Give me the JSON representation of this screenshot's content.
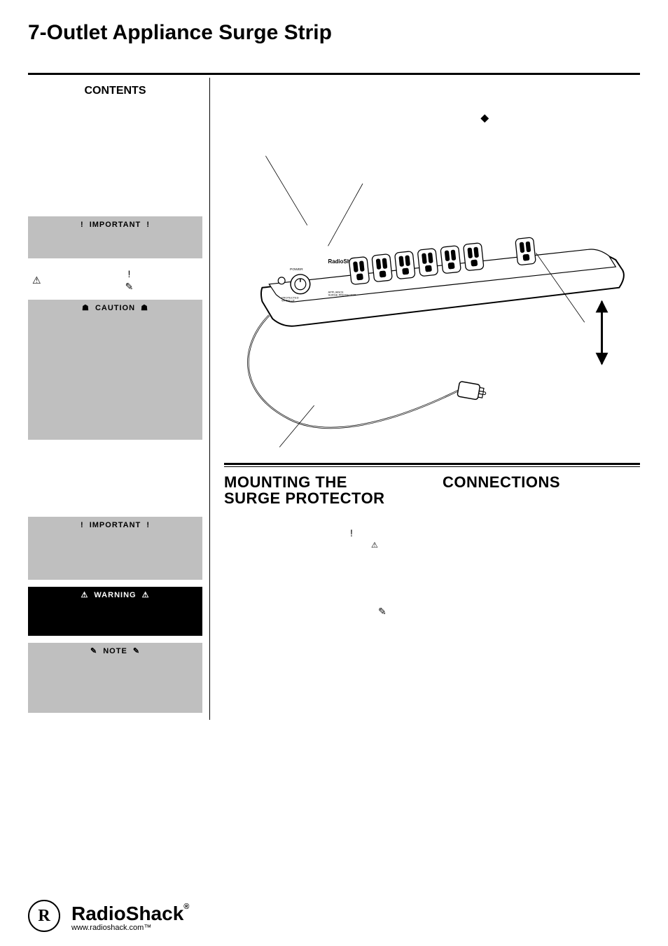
{
  "title": "7-Outlet Appliance Surge Strip",
  "sidebar": {
    "contents_heading": "CONTENTS",
    "callouts": [
      {
        "label": "IMPORTANT",
        "bang": "!",
        "style": "gray"
      },
      {
        "label": "CAUTION",
        "bang": "☗",
        "style": "gray"
      },
      {
        "label": "IMPORTANT",
        "bang": "!",
        "style": "gray"
      },
      {
        "label": "WARNING",
        "bang": "⚠",
        "style": "black"
      },
      {
        "label": "NOTE",
        "bang": "✎",
        "style": "gray"
      }
    ],
    "icon_box": {
      "left": "⚠",
      "mid": "!",
      "right": "✎"
    }
  },
  "main": {
    "illustration": {
      "brand_on_strip": "RadioShack",
      "labels": {
        "power": "POWER",
        "protected": "PROTECTED\\nWHEN LIT",
        "appliance": "APPLIANCE\\nSURGE PROTECTOR"
      }
    },
    "sections": {
      "left_heading": "MOUNTING THE\nSURGE PROTECTOR",
      "right_heading": "CONNECTIONS"
    },
    "inline_icons": {
      "row1": "!",
      "row2": "⚠",
      "row3": "✎"
    }
  },
  "footer": {
    "logo_letter": "R",
    "brand": "RadioShack",
    "reg": "®",
    "url": "www.radioshack.com™"
  },
  "colors": {
    "gray": "#bfbfbf",
    "black": "#000000",
    "white": "#ffffff"
  }
}
